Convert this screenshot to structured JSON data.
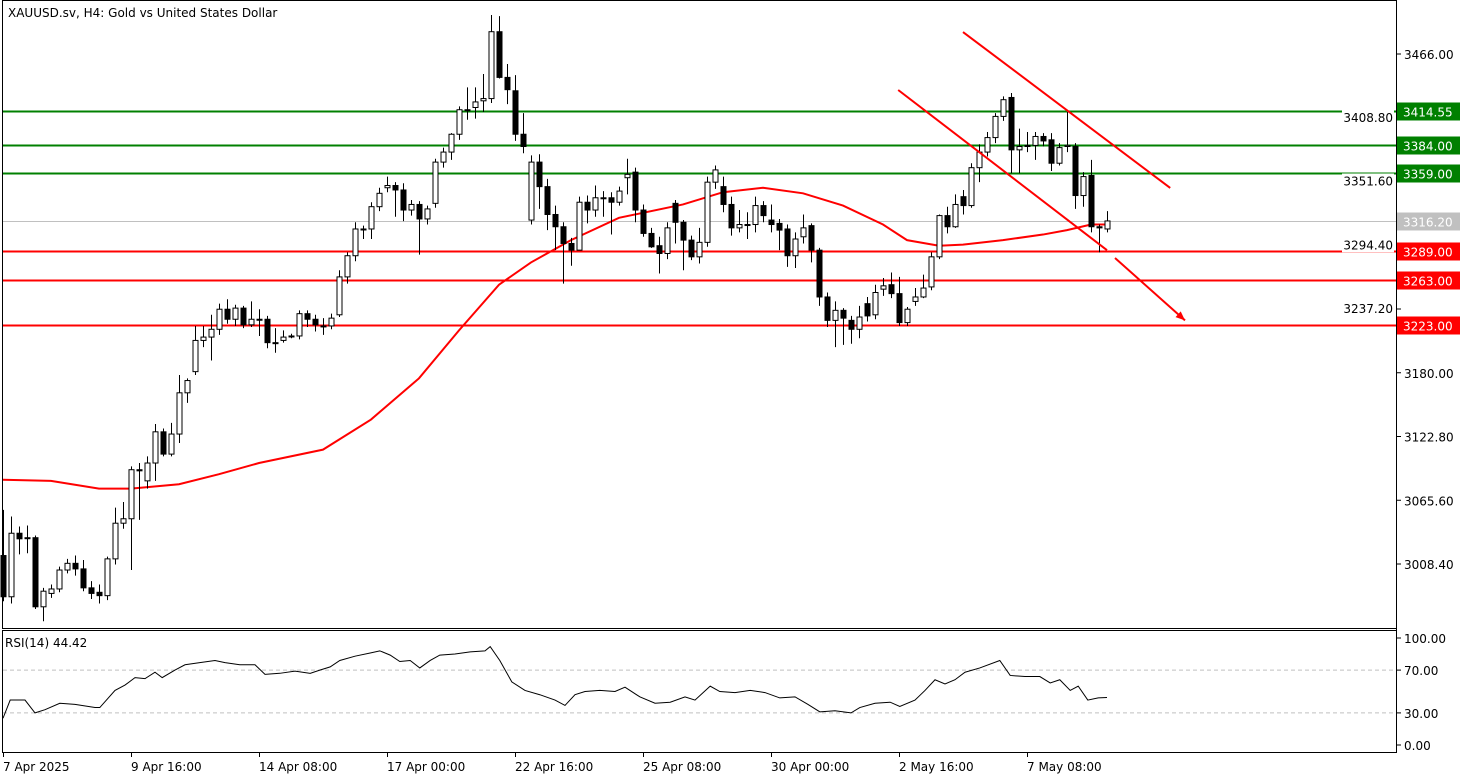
{
  "chart_title": "XAUUSD.sv, H4:  Gold vs United States Dollar",
  "rsi_label": "RSI(14) 44.42",
  "colors": {
    "bull": "#ffffff",
    "bear": "#000000",
    "support": "#ff0000",
    "resistance": "#008000",
    "current": "#c0c0c0",
    "ma": "#ff0000",
    "trendline": "#ff0000"
  },
  "chart_data": {
    "type": "candlestick",
    "symbol": "XAUUSD.sv",
    "timeframe": "H4",
    "price_ticks": [
      "3466.00",
      "3408.80",
      "3351.60",
      "3294.40",
      "3237.20",
      "3180.00",
      "3122.80",
      "3065.60",
      "3008.40"
    ],
    "time_ticks": [
      {
        "bar": 0,
        "label": "7 Apr 2025"
      },
      {
        "bar": 16,
        "label": "9 Apr 16:00"
      },
      {
        "bar": 32,
        "label": "14 Apr 08:00"
      },
      {
        "bar": 48,
        "label": "17 Apr 00:00"
      },
      {
        "bar": 64,
        "label": "22 Apr 16:00"
      },
      {
        "bar": 80,
        "label": "25 Apr 08:00"
      },
      {
        "bar": 96,
        "label": "30 Apr 00:00"
      },
      {
        "bar": 112,
        "label": "2 May 16:00"
      },
      {
        "bar": 128,
        "label": "7 May 08:00"
      }
    ],
    "ohlc": [
      [
        3016,
        3057,
        2975,
        2979
      ],
      [
        2979,
        3051,
        2973,
        3036
      ],
      [
        3036,
        3042,
        3017,
        3031
      ],
      [
        3032,
        3043,
        3018,
        3032
      ],
      [
        3032,
        3034,
        2968,
        2970
      ],
      [
        2970,
        2987,
        2957,
        2984
      ],
      [
        2982,
        2990,
        2978,
        2986
      ],
      [
        2986,
        3006,
        2983,
        3003
      ],
      [
        3003,
        3013,
        3000,
        3009
      ],
      [
        3009,
        3016,
        2998,
        3004
      ],
      [
        3004,
        3012,
        2984,
        2987
      ],
      [
        2987,
        2993,
        2977,
        2982
      ],
      [
        2983,
        2990,
        2973,
        2980
      ],
      [
        2980,
        3015,
        2976,
        3013
      ],
      [
        3013,
        3059,
        3008,
        3045
      ],
      [
        3045,
        3064,
        3040,
        3049
      ],
      [
        3049,
        3096,
        3003,
        3093
      ],
      [
        3093,
        3099,
        3048,
        3092
      ],
      [
        3083,
        3105,
        3076,
        3099
      ],
      [
        3099,
        3134,
        3083,
        3127
      ],
      [
        3127,
        3130,
        3105,
        3107
      ],
      [
        3107,
        3135,
        3105,
        3125
      ],
      [
        3125,
        3178,
        3117,
        3162
      ],
      [
        3162,
        3175,
        3153,
        3173
      ],
      [
        3181,
        3222,
        3178,
        3209
      ],
      [
        3209,
        3222,
        3203,
        3212
      ],
      [
        3212,
        3232,
        3191,
        3219
      ],
      [
        3219,
        3242,
        3214,
        3237
      ],
      [
        3237,
        3246,
        3224,
        3228
      ],
      [
        3228,
        3241,
        3222,
        3238
      ],
      [
        3238,
        3240,
        3220,
        3223
      ],
      [
        3223,
        3244,
        3221,
        3228
      ],
      [
        3228,
        3237,
        3213,
        3228
      ],
      [
        3228,
        3231,
        3202,
        3207
      ],
      [
        3207,
        3220,
        3198,
        3207
      ],
      [
        3209,
        3218,
        3207,
        3212
      ],
      [
        3213,
        3215,
        3211,
        3213
      ],
      [
        3213,
        3236,
        3210,
        3233
      ],
      [
        3233,
        3236,
        3221,
        3228
      ],
      [
        3228,
        3232,
        3217,
        3223
      ],
      [
        3222,
        3229,
        3214,
        3222
      ],
      [
        3222,
        3233,
        3219,
        3229
      ],
      [
        3232,
        3272,
        3230,
        3266
      ],
      [
        3266,
        3288,
        3260,
        3285
      ],
      [
        3285,
        3315,
        3280,
        3309
      ],
      [
        3309,
        3312,
        3300,
        3309
      ],
      [
        3309,
        3333,
        3300,
        3329
      ],
      [
        3329,
        3346,
        3325,
        3341
      ],
      [
        3346,
        3356,
        3342,
        3348
      ],
      [
        3348,
        3351,
        3320,
        3344
      ],
      [
        3344,
        3350,
        3316,
        3326
      ],
      [
        3326,
        3335,
        3321,
        3331
      ],
      [
        3331,
        3334,
        3286,
        3318
      ],
      [
        3318,
        3330,
        3313,
        3327
      ],
      [
        3332,
        3372,
        3328,
        3369
      ],
      [
        3369,
        3382,
        3364,
        3378
      ],
      [
        3378,
        3395,
        3371,
        3394
      ],
      [
        3394,
        3419,
        3389,
        3416
      ],
      [
        3416,
        3436,
        3407,
        3416
      ],
      [
        3418,
        3436,
        3408,
        3423
      ],
      [
        3424,
        3448,
        3414,
        3426
      ],
      [
        3426,
        3501,
        3422,
        3486
      ],
      [
        3486,
        3500,
        3444,
        3445
      ],
      [
        3445,
        3457,
        3421,
        3434
      ],
      [
        3433,
        3447,
        3388,
        3394
      ],
      [
        3394,
        3413,
        3377,
        3383
      ],
      [
        3317,
        3375,
        3313,
        3369
      ],
      [
        3369,
        3376,
        3327,
        3347
      ],
      [
        3347,
        3354,
        3308,
        3322
      ],
      [
        3322,
        3330,
        3290,
        3311
      ],
      [
        3311,
        3315,
        3260,
        3296
      ],
      [
        3296,
        3301,
        3276,
        3290
      ],
      [
        3290,
        3338,
        3290,
        3333
      ],
      [
        3333,
        3339,
        3314,
        3326
      ],
      [
        3326,
        3348,
        3320,
        3337
      ],
      [
        3337,
        3343,
        3320,
        3337
      ],
      [
        3337,
        3342,
        3304,
        3333
      ],
      [
        3333,
        3347,
        3330,
        3343
      ],
      [
        3355,
        3372,
        3340,
        3358
      ],
      [
        3360,
        3364,
        3315,
        3326
      ],
      [
        3326,
        3331,
        3302,
        3305
      ],
      [
        3305,
        3310,
        3292,
        3293
      ],
      [
        3294,
        3302,
        3269,
        3287
      ],
      [
        3287,
        3315,
        3282,
        3310
      ],
      [
        3332,
        3335,
        3296,
        3315
      ],
      [
        3315,
        3317,
        3272,
        3299
      ],
      [
        3299,
        3303,
        3281,
        3284
      ],
      [
        3284,
        3310,
        3278,
        3297
      ],
      [
        3297,
        3356,
        3293,
        3351
      ],
      [
        3351,
        3366,
        3345,
        3362
      ],
      [
        3347,
        3356,
        3324,
        3331
      ],
      [
        3331,
        3338,
        3303,
        3310
      ],
      [
        3310,
        3326,
        3306,
        3313
      ],
      [
        3313,
        3324,
        3300,
        3313
      ],
      [
        3313,
        3338,
        3306,
        3330
      ],
      [
        3330,
        3334,
        3315,
        3321
      ],
      [
        3317,
        3331,
        3306,
        3313
      ],
      [
        3314,
        3318,
        3290,
        3308
      ],
      [
        3309,
        3313,
        3275,
        3285
      ],
      [
        3285,
        3306,
        3274,
        3300
      ],
      [
        3302,
        3322,
        3296,
        3310
      ],
      [
        3312,
        3314,
        3279,
        3290
      ],
      [
        3290,
        3292,
        3240,
        3248
      ],
      [
        3248,
        3252,
        3221,
        3227
      ],
      [
        3227,
        3244,
        3203,
        3236
      ],
      [
        3236,
        3238,
        3205,
        3229
      ],
      [
        3227,
        3231,
        3206,
        3219
      ],
      [
        3219,
        3240,
        3211,
        3230
      ],
      [
        3242,
        3248,
        3226,
        3231
      ],
      [
        3232,
        3259,
        3228,
        3252
      ],
      [
        3255,
        3265,
        3249,
        3258
      ],
      [
        3259,
        3270,
        3247,
        3251
      ],
      [
        3251,
        3266,
        3222,
        3225
      ],
      [
        3225,
        3239,
        3222,
        3237
      ],
      [
        3244,
        3256,
        3240,
        3248
      ],
      [
        3248,
        3268,
        3247,
        3256
      ],
      [
        3257,
        3288,
        3254,
        3284
      ],
      [
        3284,
        3322,
        3282,
        3321
      ],
      [
        3321,
        3329,
        3305,
        3311
      ],
      [
        3311,
        3340,
        3310,
        3331
      ],
      [
        3338,
        3344,
        3322,
        3330
      ],
      [
        3330,
        3368,
        3328,
        3364
      ],
      [
        3364,
        3385,
        3351,
        3378
      ],
      [
        3378,
        3396,
        3374,
        3391
      ],
      [
        3391,
        3413,
        3386,
        3410
      ],
      [
        3410,
        3428,
        3406,
        3425
      ],
      [
        3427,
        3431,
        3359,
        3380
      ],
      [
        3380,
        3399,
        3359,
        3383
      ],
      [
        3384,
        3396,
        3378,
        3383
      ],
      [
        3384,
        3396,
        3371,
        3392
      ],
      [
        3392,
        3395,
        3383,
        3388
      ],
      [
        3389,
        3395,
        3361,
        3368
      ],
      [
        3368,
        3386,
        3366,
        3382
      ],
      [
        3383,
        3414,
        3378,
        3384
      ],
      [
        3383,
        3386,
        3327,
        3339
      ],
      [
        3339,
        3360,
        3329,
        3356
      ],
      [
        3357,
        3371,
        3306,
        3311
      ],
      [
        3311,
        3313,
        3288,
        3310
      ],
      [
        3309,
        3325,
        3306,
        3316.2
      ]
    ],
    "moving_average": [
      [
        0,
        3084
      ],
      [
        6,
        3083
      ],
      [
        12,
        3076
      ],
      [
        16,
        3076
      ],
      [
        22,
        3080
      ],
      [
        27,
        3089
      ],
      [
        32,
        3099
      ],
      [
        40,
        3111
      ],
      [
        46,
        3138
      ],
      [
        52,
        3175
      ],
      [
        57,
        3218
      ],
      [
        62,
        3259
      ],
      [
        66,
        3279
      ],
      [
        71,
        3299
      ],
      [
        77,
        3319
      ],
      [
        85,
        3331
      ],
      [
        90,
        3342
      ],
      [
        95,
        3346
      ],
      [
        100,
        3341
      ],
      [
        105,
        3330
      ],
      [
        110,
        3313
      ],
      [
        113,
        3299
      ],
      [
        117,
        3294
      ],
      [
        120,
        3295
      ],
      [
        125,
        3299
      ],
      [
        130,
        3304
      ],
      [
        133,
        3308
      ],
      [
        136,
        3313
      ],
      [
        138,
        3313
      ]
    ],
    "horizontal_levels": [
      {
        "price": 3414.55,
        "label": "3414.55",
        "kind": "resistance"
      },
      {
        "price": 3384.0,
        "label": "3384.00",
        "kind": "resistance"
      },
      {
        "price": 3359.0,
        "label": "3359.00",
        "kind": "resistance"
      },
      {
        "price": 3316.2,
        "label": "3316.20",
        "kind": "current"
      },
      {
        "price": 3289.0,
        "label": "3289.00",
        "kind": "support"
      },
      {
        "price": 3263.0,
        "label": "3263.00",
        "kind": "support"
      },
      {
        "price": 3223.0,
        "label": "3223.00",
        "kind": "support"
      }
    ],
    "trendlines": [
      {
        "from": [
          111.9,
          3433.7
        ],
        "to": [
          138,
          3290
        ],
        "arrow": false
      },
      {
        "from": [
          120,
          3485.7
        ],
        "to": [
          145.9,
          3345.8
        ],
        "arrow": false
      },
      {
        "from": [
          139,
          3283
        ],
        "to": [
          147.75,
          3227
        ],
        "arrow": true
      }
    ],
    "rsi": {
      "period": 14,
      "levels": [
        70,
        30
      ],
      "ticks": [
        "100.00",
        "70.00",
        "30.00",
        "0.00"
      ],
      "points": [
        [
          0,
          25
        ],
        [
          0.9,
          42
        ],
        [
          2.75,
          42
        ],
        [
          4,
          30
        ],
        [
          5.25,
          33
        ],
        [
          7.1,
          39
        ],
        [
          9,
          38
        ],
        [
          11.5,
          35
        ],
        [
          12.1,
          35
        ],
        [
          14,
          51
        ],
        [
          15.25,
          56
        ],
        [
          16.5,
          63
        ],
        [
          17.75,
          62
        ],
        [
          19,
          68
        ],
        [
          19.9,
          63
        ],
        [
          21.5,
          70
        ],
        [
          22.75,
          75
        ],
        [
          24.6,
          77
        ],
        [
          26.5,
          79
        ],
        [
          27.75,
          77
        ],
        [
          29.6,
          75
        ],
        [
          31.5,
          75
        ],
        [
          32.75,
          66
        ],
        [
          34.6,
          67
        ],
        [
          36.5,
          69
        ],
        [
          38.4,
          67
        ],
        [
          39.6,
          70
        ],
        [
          40.9,
          73
        ],
        [
          42.1,
          79
        ],
        [
          44,
          83
        ],
        [
          45.9,
          86
        ],
        [
          47.1,
          88
        ],
        [
          48.4,
          84
        ],
        [
          49.6,
          78
        ],
        [
          50.9,
          79
        ],
        [
          52.1,
          72
        ],
        [
          53.4,
          79
        ],
        [
          54.6,
          84
        ],
        [
          56.5,
          85
        ],
        [
          58.4,
          87
        ],
        [
          60.25,
          88
        ],
        [
          60.9,
          92
        ],
        [
          62.1,
          79
        ],
        [
          63.6,
          59
        ],
        [
          65.25,
          51
        ],
        [
          67.1,
          47
        ],
        [
          69,
          42
        ],
        [
          70.25,
          37
        ],
        [
          71.5,
          47
        ],
        [
          72.75,
          50
        ],
        [
          74.6,
          51
        ],
        [
          76.5,
          50
        ],
        [
          77.75,
          54
        ],
        [
          79.6,
          45
        ],
        [
          81.5,
          39
        ],
        [
          83.4,
          40
        ],
        [
          85.25,
          45
        ],
        [
          86.5,
          42
        ],
        [
          88.4,
          55
        ],
        [
          89.6,
          50
        ],
        [
          91.5,
          49
        ],
        [
          93.4,
          51
        ],
        [
          95.25,
          49
        ],
        [
          97.1,
          44
        ],
        [
          99,
          45
        ],
        [
          100.6,
          38
        ],
        [
          102.1,
          31
        ],
        [
          104,
          32
        ],
        [
          106,
          30
        ],
        [
          107.1,
          35
        ],
        [
          109,
          39
        ],
        [
          110.9,
          40
        ],
        [
          112.1,
          36
        ],
        [
          114,
          42
        ],
        [
          115.25,
          51
        ],
        [
          116.5,
          61
        ],
        [
          117.75,
          57
        ],
        [
          119,
          61
        ],
        [
          120.25,
          68
        ],
        [
          122.1,
          72
        ],
        [
          124.6,
          79
        ],
        [
          125.9,
          65
        ],
        [
          127.75,
          64
        ],
        [
          129.6,
          64
        ],
        [
          130.9,
          58
        ],
        [
          132.1,
          61
        ],
        [
          133.4,
          51
        ],
        [
          134.4,
          55
        ],
        [
          135.6,
          42
        ],
        [
          136.9,
          44
        ],
        [
          138,
          44.42
        ]
      ]
    }
  }
}
